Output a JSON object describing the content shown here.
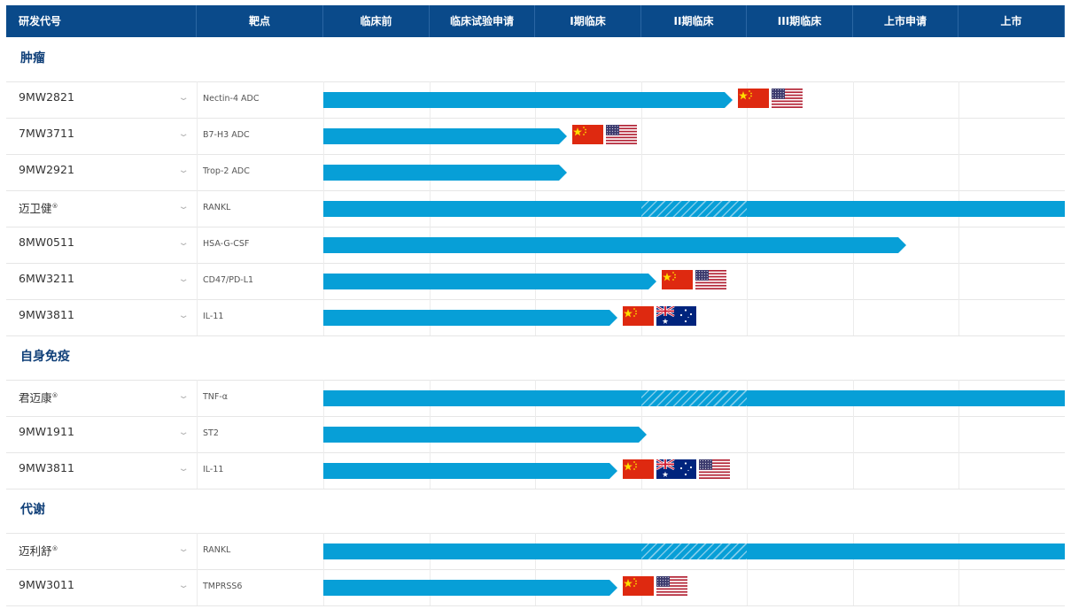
{
  "header": {
    "columns": [
      "研发代号",
      "靶点",
      "临床前",
      "临床试验申请",
      "I期临床",
      "II期临床",
      "III期临床",
      "上市申请",
      "上市"
    ]
  },
  "categories": [
    {
      "name": "肿瘤",
      "items": [
        {
          "code": "9MW2821",
          "reg": "",
          "target": "Nectin-4 ADC",
          "progress_phase": 3.86,
          "hatched": false,
          "flags": [
            "china-flag",
            "usa-flag"
          ]
        },
        {
          "code": "7MW3711",
          "reg": "",
          "target": "B7-H3 ADC",
          "progress_phase": 2.3,
          "hatched": false,
          "flags": [
            "china-flag",
            "usa-flag"
          ]
        },
        {
          "code": "9MW2921",
          "reg": "",
          "target": "Trop-2 ADC",
          "progress_phase": 2.3,
          "hatched": false,
          "flags": []
        },
        {
          "code": "迈卫健",
          "reg": "®",
          "target": "RANKL",
          "progress_phase": 7,
          "hatched": true,
          "flags": []
        },
        {
          "code": "8MW0511",
          "reg": "",
          "target": "HSA-G-CSF",
          "progress_phase": 5.5,
          "hatched": false,
          "flags": []
        },
        {
          "code": "6MW3211",
          "reg": "",
          "target": "CD47/PD-L1",
          "progress_phase": 3.14,
          "hatched": false,
          "flags": [
            "china-flag",
            "usa-flag"
          ]
        },
        {
          "code": "9MW3811",
          "reg": "",
          "target": "IL-11",
          "progress_phase": 2.78,
          "hatched": false,
          "flags": [
            "china-flag",
            "australia-flag"
          ]
        }
      ]
    },
    {
      "name": "自身免疫",
      "items": [
        {
          "code": "君迈康",
          "reg": "®",
          "target": "TNF-α",
          "progress_phase": 7,
          "hatched": true,
          "flags": []
        },
        {
          "code": "9MW1911",
          "reg": "",
          "target": "ST2",
          "progress_phase": 3.05,
          "hatched": false,
          "flags": []
        },
        {
          "code": "9MW3811",
          "reg": "",
          "target": "IL-11",
          "progress_phase": 2.78,
          "hatched": false,
          "flags": [
            "china-flag",
            "australia-flag",
            "usa-flag"
          ]
        }
      ]
    },
    {
      "name": "代谢",
      "items": [
        {
          "code": "迈利舒",
          "reg": "®",
          "target": "RANKL",
          "progress_phase": 7,
          "hatched": true,
          "flags": []
        },
        {
          "code": "9MW3011",
          "reg": "",
          "target": "TMPRSS6",
          "progress_phase": 2.78,
          "hatched": false,
          "flags": [
            "china-flag",
            "usa-flag"
          ]
        }
      ]
    }
  ],
  "colors": {
    "header_bg": "#0a4a8a",
    "bar": "#079fd7",
    "category_text": "#0f3f78"
  }
}
